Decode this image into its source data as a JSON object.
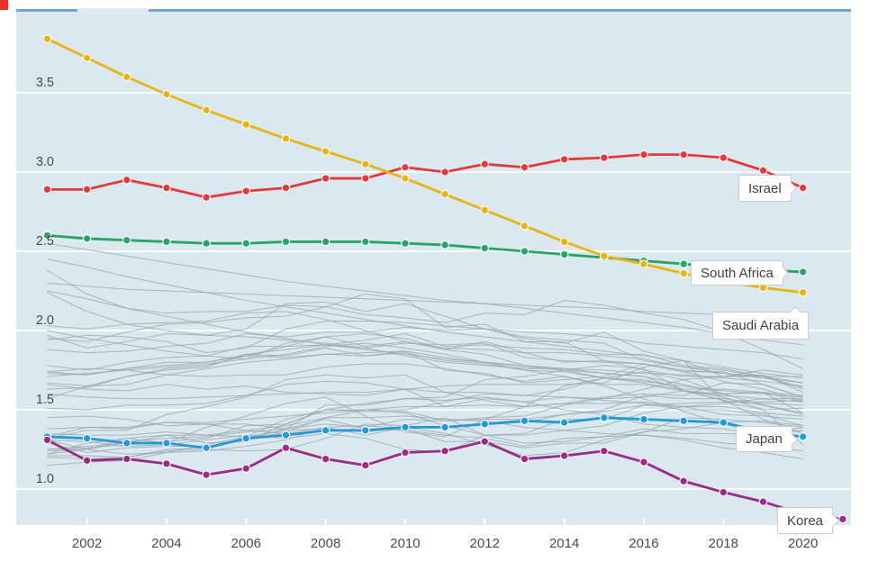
{
  "page": {
    "corner_mark_color": "#e5312b"
  },
  "chart_data": {
    "type": "line",
    "title": "",
    "xlabel": "",
    "ylabel": "",
    "x_start_year": 2001,
    "xlim": [
      2001,
      2021
    ],
    "ylim": [
      0.77,
      4.0
    ],
    "grid": "horizontal-white-lines",
    "legend_position": "callout-labels-at-line-ends",
    "x_ticks": [
      {
        "label": "2002",
        "value": 2002
      },
      {
        "label": "2004",
        "value": 2004
      },
      {
        "label": "2006",
        "value": 2006
      },
      {
        "label": "2008",
        "value": 2008
      },
      {
        "label": "2010",
        "value": 2010
      },
      {
        "label": "2012",
        "value": 2012
      },
      {
        "label": "2014",
        "value": 2014
      },
      {
        "label": "2016",
        "value": 2016
      },
      {
        "label": "2018",
        "value": 2018
      },
      {
        "label": "2020",
        "value": 2020
      }
    ],
    "y_ticks": [
      {
        "label": "3.5",
        "value": 3.5
      },
      {
        "label": "3.0",
        "value": 3.0
      },
      {
        "label": "2.5",
        "value": 2.5
      },
      {
        "label": "2.0",
        "value": 2.0
      },
      {
        "label": "1.5",
        "value": 1.5
      },
      {
        "label": "1.0",
        "value": 1.0
      }
    ],
    "series": [
      {
        "name": "Israel",
        "label": "Israel",
        "color": "#e23a3c",
        "start_year": 2001,
        "values": [
          2.89,
          2.89,
          2.95,
          2.9,
          2.84,
          2.88,
          2.9,
          2.96,
          2.96,
          3.03,
          3.0,
          3.05,
          3.03,
          3.08,
          3.09,
          3.11,
          3.11,
          3.09,
          3.01,
          2.9
        ]
      },
      {
        "name": "South Africa",
        "label": "South Africa",
        "color": "#27a567",
        "start_year": 2001,
        "values": [
          2.6,
          2.58,
          2.57,
          2.56,
          2.55,
          2.55,
          2.56,
          2.56,
          2.56,
          2.55,
          2.54,
          2.52,
          2.5,
          2.48,
          2.46,
          2.44,
          2.42,
          2.4,
          2.38,
          2.37
        ]
      },
      {
        "name": "Saudi Arabia",
        "label": "Saudi Arabia",
        "color": "#e4b514",
        "start_year": 2001,
        "values": [
          3.84,
          3.72,
          3.6,
          3.49,
          3.39,
          3.3,
          3.21,
          3.13,
          3.05,
          2.96,
          2.86,
          2.76,
          2.66,
          2.56,
          2.47,
          2.42,
          2.36,
          2.31,
          2.27,
          2.24
        ]
      },
      {
        "name": "Japan",
        "label": "Japan",
        "color": "#2599d6",
        "start_year": 2001,
        "values": [
          1.33,
          1.32,
          1.29,
          1.29,
          1.26,
          1.32,
          1.34,
          1.37,
          1.37,
          1.39,
          1.39,
          1.41,
          1.43,
          1.42,
          1.45,
          1.44,
          1.43,
          1.42,
          1.36,
          1.33
        ]
      },
      {
        "name": "Korea",
        "label": "Korea",
        "color": "#992d85",
        "start_year": 2001,
        "values": [
          1.31,
          1.18,
          1.19,
          1.16,
          1.09,
          1.13,
          1.26,
          1.19,
          1.15,
          1.23,
          1.24,
          1.3,
          1.19,
          1.21,
          1.24,
          1.17,
          1.05,
          0.98,
          0.92,
          0.84,
          0.81
        ]
      }
    ],
    "background_series": [
      [
        2.55,
        2.51,
        2.47,
        2.43,
        2.39,
        2.35,
        2.31,
        2.28,
        2.25,
        2.22,
        2.19,
        2.17,
        2.14,
        2.11,
        2.08,
        2.05,
        2.02,
        1.98,
        1.94,
        1.91
      ],
      [
        2.38,
        2.23,
        2.14,
        2.11,
        2.12,
        2.12,
        2.16,
        2.15,
        2.1,
        2.08,
        2.05,
        2.11,
        2.1,
        2.19,
        2.16,
        2.11,
        2.07,
        1.99,
        1.88,
        1.76
      ],
      [
        2.45,
        2.4,
        2.34,
        2.29,
        2.24,
        2.19,
        2.15,
        2.11,
        2.07,
        2.03,
        1.99,
        1.96,
        1.93,
        1.9,
        1.87,
        1.84,
        1.81,
        1.77,
        1.73,
        1.7
      ],
      [
        2.3,
        2.28,
        2.26,
        2.25,
        2.24,
        2.23,
        2.22,
        2.21,
        2.2,
        2.19,
        2.18,
        2.17,
        2.16,
        2.15,
        2.14,
        2.12,
        2.11,
        2.1,
        2.09,
        2.08
      ],
      [
        2.24,
        2.12,
        2.04,
        2.0,
        1.97,
        1.96,
        1.94,
        1.92,
        1.89,
        1.84,
        1.8,
        1.78,
        1.76,
        1.76,
        1.73,
        1.71,
        1.66,
        1.6,
        1.53,
        1.47
      ],
      [
        2.25,
        2.2,
        2.14,
        2.09,
        2.04,
        1.99,
        1.95,
        1.91,
        1.88,
        1.85,
        1.82,
        1.8,
        1.78,
        1.76,
        1.75,
        1.73,
        1.72,
        1.7,
        1.68,
        1.65
      ],
      [
        2.03,
        2.01,
        2.04,
        2.05,
        2.06,
        2.11,
        2.12,
        2.07,
        2.0,
        1.93,
        1.89,
        1.88,
        1.86,
        1.86,
        1.84,
        1.82,
        1.77,
        1.73,
        1.71,
        1.64
      ],
      [
        1.88,
        1.86,
        1.87,
        1.9,
        1.92,
        1.98,
        1.96,
        1.99,
        1.99,
        2.02,
        2.0,
        2.01,
        1.99,
        1.98,
        1.96,
        1.92,
        1.9,
        1.88,
        1.86,
        1.82
      ],
      [
        1.94,
        1.97,
        1.96,
        1.93,
        1.86,
        1.89,
        2.01,
        2.06,
        2.06,
        2.05,
        2.03,
        2.01,
        1.96,
        1.94,
        1.92,
        1.81,
        1.77,
        1.75,
        1.71,
        1.63
      ],
      [
        1.97,
        1.89,
        1.93,
        1.98,
        1.97,
        2.01,
        2.17,
        2.18,
        2.12,
        2.17,
        2.09,
        2.01,
        1.95,
        1.92,
        1.99,
        1.87,
        1.81,
        1.71,
        1.72,
        1.61
      ],
      [
        1.74,
        1.76,
        1.75,
        1.77,
        1.79,
        1.82,
        1.92,
        1.96,
        1.9,
        1.93,
        1.88,
        1.93,
        1.86,
        1.8,
        1.81,
        1.79,
        1.74,
        1.74,
        1.66,
        1.58
      ],
      [
        1.63,
        1.64,
        1.71,
        1.76,
        1.78,
        1.84,
        1.9,
        1.91,
        1.89,
        1.92,
        1.91,
        1.92,
        1.83,
        1.81,
        1.8,
        1.79,
        1.74,
        1.68,
        1.63,
        1.56
      ],
      [
        1.57,
        1.65,
        1.71,
        1.75,
        1.77,
        1.85,
        1.88,
        1.91,
        1.94,
        1.98,
        1.9,
        1.91,
        1.89,
        1.88,
        1.85,
        1.85,
        1.78,
        1.76,
        1.71,
        1.67
      ],
      [
        1.78,
        1.75,
        1.8,
        1.83,
        1.84,
        1.9,
        1.9,
        1.96,
        1.98,
        1.95,
        1.88,
        1.85,
        1.78,
        1.75,
        1.73,
        1.71,
        1.62,
        1.56,
        1.53,
        1.48
      ],
      [
        1.74,
        1.72,
        1.76,
        1.78,
        1.8,
        1.85,
        1.84,
        1.89,
        1.84,
        1.87,
        1.75,
        1.73,
        1.67,
        1.69,
        1.71,
        1.79,
        1.75,
        1.73,
        1.7,
        1.67
      ],
      [
        1.73,
        1.72,
        1.76,
        1.8,
        1.8,
        1.84,
        1.83,
        1.85,
        1.86,
        1.87,
        1.83,
        1.8,
        1.75,
        1.71,
        1.65,
        1.57,
        1.49,
        1.41,
        1.35,
        1.37
      ],
      [
        1.71,
        1.73,
        1.75,
        1.72,
        1.71,
        1.72,
        1.72,
        1.77,
        1.79,
        1.79,
        1.76,
        1.72,
        1.68,
        1.71,
        1.66,
        1.66,
        1.62,
        1.59,
        1.57,
        1.55
      ],
      [
        1.67,
        1.65,
        1.66,
        1.72,
        1.76,
        1.8,
        1.82,
        1.85,
        1.84,
        1.86,
        1.81,
        1.79,
        1.75,
        1.74,
        1.7,
        1.68,
        1.65,
        1.62,
        1.6,
        1.58
      ],
      [
        1.95,
        1.93,
        1.99,
        2.04,
        2.05,
        2.08,
        2.09,
        2.15,
        2.23,
        2.2,
        2.02,
        2.04,
        1.93,
        1.93,
        1.81,
        1.75,
        1.71,
        1.71,
        1.75,
        1.72
      ],
      [
        1.33,
        1.39,
        1.38,
        1.42,
        1.41,
        1.41,
        1.38,
        1.41,
        1.39,
        1.44,
        1.43,
        1.44,
        1.44,
        1.47,
        1.49,
        1.53,
        1.52,
        1.47,
        1.46,
        1.44
      ],
      [
        1.35,
        1.34,
        1.34,
        1.36,
        1.34,
        1.33,
        1.37,
        1.38,
        1.36,
        1.39,
        1.39,
        1.41,
        1.42,
        1.47,
        1.5,
        1.59,
        1.57,
        1.57,
        1.54,
        1.53
      ],
      [
        1.38,
        1.39,
        1.39,
        1.42,
        1.42,
        1.44,
        1.46,
        1.48,
        1.5,
        1.52,
        1.52,
        1.53,
        1.52,
        1.54,
        1.54,
        1.55,
        1.52,
        1.52,
        1.48,
        1.46
      ],
      [
        1.25,
        1.27,
        1.29,
        1.34,
        1.34,
        1.37,
        1.4,
        1.45,
        1.45,
        1.46,
        1.44,
        1.43,
        1.39,
        1.37,
        1.35,
        1.34,
        1.32,
        1.29,
        1.27,
        1.24
      ],
      [
        1.24,
        1.25,
        1.3,
        1.32,
        1.33,
        1.36,
        1.38,
        1.44,
        1.38,
        1.37,
        1.34,
        1.32,
        1.27,
        1.32,
        1.33,
        1.34,
        1.31,
        1.26,
        1.23,
        1.19
      ],
      [
        1.45,
        1.46,
        1.44,
        1.4,
        1.41,
        1.37,
        1.35,
        1.39,
        1.34,
        1.39,
        1.35,
        1.28,
        1.21,
        1.23,
        1.31,
        1.36,
        1.38,
        1.42,
        1.43,
        1.4
      ],
      [
        1.25,
        1.26,
        1.28,
        1.3,
        1.32,
        1.4,
        1.41,
        1.5,
        1.5,
        1.48,
        1.4,
        1.34,
        1.29,
        1.3,
        1.33,
        1.38,
        1.35,
        1.35,
        1.34,
        1.39
      ],
      [
        1.31,
        1.25,
        1.22,
        1.23,
        1.24,
        1.27,
        1.31,
        1.39,
        1.4,
        1.38,
        1.3,
        1.3,
        1.26,
        1.29,
        1.29,
        1.36,
        1.45,
        1.44,
        1.42,
        1.39
      ],
      [
        1.15,
        1.17,
        1.18,
        1.23,
        1.28,
        1.33,
        1.44,
        1.5,
        1.49,
        1.49,
        1.43,
        1.45,
        1.46,
        1.53,
        1.57,
        1.63,
        1.69,
        1.71,
        1.71,
        1.71
      ],
      [
        1.2,
        1.19,
        1.2,
        1.24,
        1.25,
        1.24,
        1.25,
        1.32,
        1.41,
        1.4,
        1.45,
        1.34,
        1.34,
        1.37,
        1.4,
        1.48,
        1.52,
        1.54,
        1.57,
        1.57
      ],
      [
        1.31,
        1.3,
        1.27,
        1.28,
        1.31,
        1.34,
        1.32,
        1.35,
        1.32,
        1.25,
        1.23,
        1.34,
        1.35,
        1.44,
        1.44,
        1.53,
        1.54,
        1.55,
        1.55,
        1.56
      ],
      [
        1.32,
        1.37,
        1.37,
        1.47,
        1.52,
        1.58,
        1.69,
        1.72,
        1.7,
        1.72,
        1.61,
        1.56,
        1.52,
        1.54,
        1.58,
        1.6,
        1.59,
        1.67,
        1.66,
        1.58
      ],
      [
        1.22,
        1.25,
        1.32,
        1.29,
        1.39,
        1.46,
        1.54,
        1.58,
        1.46,
        1.36,
        1.33,
        1.44,
        1.52,
        1.65,
        1.7,
        1.74,
        1.69,
        1.6,
        1.61,
        1.55
      ],
      [
        1.29,
        1.23,
        1.26,
        1.27,
        1.27,
        1.31,
        1.36,
        1.45,
        1.5,
        1.5,
        1.55,
        1.6,
        1.59,
        1.63,
        1.7,
        1.69,
        1.63,
        1.63,
        1.61,
        1.48
      ],
      [
        1.21,
        1.21,
        1.2,
        1.25,
        1.26,
        1.31,
        1.38,
        1.53,
        1.53,
        1.57,
        1.56,
        1.58,
        1.55,
        1.58,
        1.57,
        1.58,
        1.62,
        1.6,
        1.61,
        1.59
      ],
      [
        1.66,
        1.63,
        1.62,
        1.66,
        1.63,
        1.65,
        1.61,
        1.6,
        1.59,
        1.63,
        1.52,
        1.57,
        1.55,
        1.5,
        1.47,
        1.41,
        1.39,
        1.38,
        1.34,
        1.37
      ],
      [
        1.51,
        1.5,
        1.53,
        1.53,
        1.54,
        1.59,
        1.66,
        1.68,
        1.67,
        1.63,
        1.61,
        1.61,
        1.59,
        1.58,
        1.56,
        1.54,
        1.5,
        1.5,
        1.47,
        1.4
      ],
      [
        2.0,
        1.95,
        1.91,
        1.87,
        1.84,
        1.82,
        1.85,
        1.9,
        1.92,
        1.89,
        1.85,
        1.8,
        1.77,
        1.75,
        1.7,
        1.67,
        1.62,
        1.56,
        1.44,
        1.35
      ],
      [
        1.22,
        1.29,
        1.32,
        1.34,
        1.29,
        1.3,
        1.41,
        1.5,
        1.54,
        1.57,
        1.58,
        1.69,
        1.71,
        1.75,
        1.78,
        1.76,
        1.62,
        1.58,
        1.5,
        1.51
      ],
      [
        1.6,
        1.58,
        1.57,
        1.57,
        1.58,
        1.59,
        1.6,
        1.61,
        1.61,
        1.63,
        1.65,
        1.66,
        1.66,
        1.66,
        1.67,
        1.77,
        1.81,
        1.55,
        1.5,
        1.28
      ]
    ],
    "style": {
      "plot_bg": "#dce8f0",
      "top_border": "#76a3cc",
      "tab": "#dfe9f1",
      "gridline": "#ffffff",
      "axis_text": "#4b4b4b",
      "background_line": "#9aa6ae",
      "callout_bg": "#ffffff",
      "callout_border": "#c7ccd1",
      "callout_text": "#3d4145"
    }
  }
}
